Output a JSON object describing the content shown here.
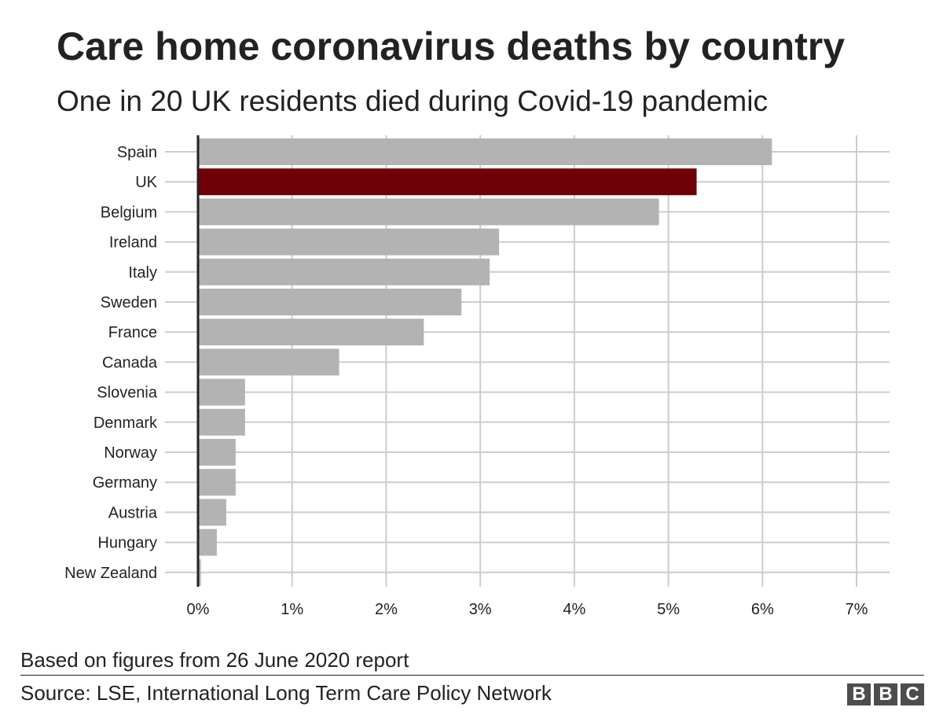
{
  "chart_data": {
    "type": "bar",
    "orientation": "horizontal",
    "title": "Care home coronavirus deaths by country",
    "subtitle": "One in 20 UK residents died during Covid-19 pandemic",
    "categories": [
      "Spain",
      "UK",
      "Belgium",
      "Ireland",
      "Italy",
      "Sweden",
      "France",
      "Canada",
      "Slovenia",
      "Denmark",
      "Norway",
      "Germany",
      "Austria",
      "Hungary",
      "New Zealand"
    ],
    "values": [
      6.1,
      5.3,
      4.9,
      3.2,
      3.1,
      2.8,
      2.4,
      1.5,
      0.5,
      0.5,
      0.4,
      0.4,
      0.3,
      0.2,
      0.03
    ],
    "highlight": "UK",
    "xlim": [
      0,
      7
    ],
    "xticks": [
      0,
      1,
      2,
      3,
      4,
      5,
      6,
      7
    ],
    "xtick_labels": [
      "0%",
      "1%",
      "2%",
      "3%",
      "4%",
      "5%",
      "6%",
      "7%"
    ],
    "grid": true,
    "colors": {
      "bar": "#b3b3b3",
      "highlight": "#700007",
      "grid": "#cccccc",
      "axis": "#222222"
    }
  },
  "footer": {
    "note": "Based on figures from 26 June 2020 report",
    "source": "Source: LSE, International Long Term Care Policy Network",
    "logo": [
      "B",
      "B",
      "C"
    ]
  }
}
